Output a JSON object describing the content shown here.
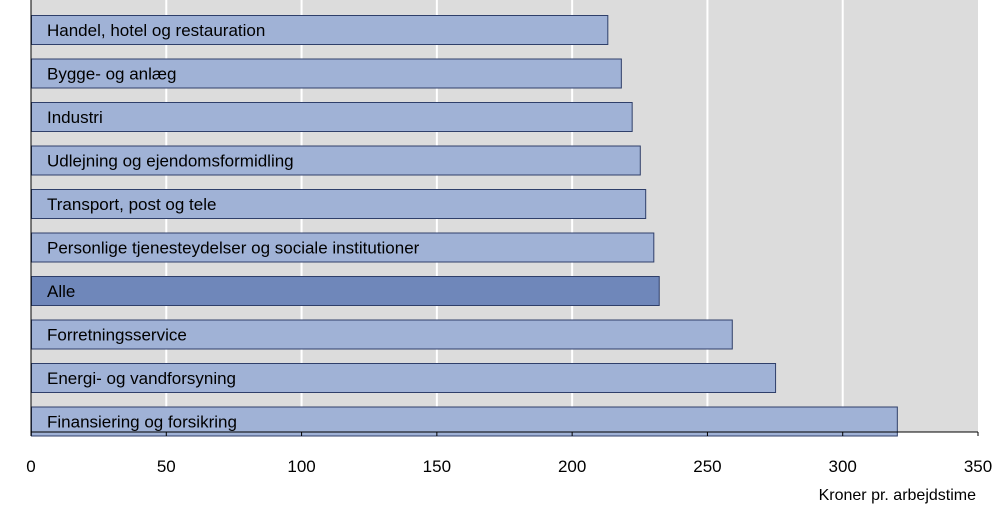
{
  "chart_data": {
    "type": "bar",
    "orientation": "horizontal",
    "title": "",
    "xlabel": "Kroner pr. arbejdstime",
    "ylabel": "",
    "xlim": [
      0,
      350
    ],
    "xticks": [
      0,
      50,
      100,
      150,
      200,
      250,
      300,
      350
    ],
    "grid": true,
    "labels_inside_bars": true,
    "categories": [
      "Handel, hotel og restauration",
      "Bygge- og anlæg",
      "Industri",
      "Udlejning og ejendomsformidling",
      "Transport, post og tele",
      "Personlige tjenesteydelser og sociale institutioner",
      "Alle",
      "Forretningsservice",
      "Energi- og vandforsyning",
      "Finansiering og forsikring"
    ],
    "values": [
      213,
      218,
      222,
      225,
      227,
      230,
      232,
      259,
      275,
      320
    ],
    "highlight_category": "Alle",
    "colors": {
      "bar": "#a0b2d6",
      "bar_highlight": "#6f87ba",
      "bar_border": "#2f3f6a",
      "plot_background": "#dcdcdc",
      "grid": "#ffffff",
      "axis": "#000000"
    }
  }
}
